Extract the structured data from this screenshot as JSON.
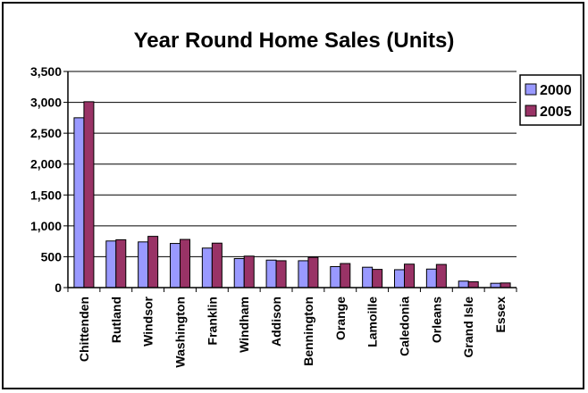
{
  "chart_data": {
    "type": "bar",
    "title": "Year Round Home Sales (Units)",
    "xlabel": "",
    "ylabel": "",
    "ylim": [
      0,
      3500
    ],
    "yticks": [
      0,
      500,
      1000,
      1500,
      2000,
      2500,
      3000,
      3500
    ],
    "ytick_labels": [
      "0",
      "500",
      "1,000",
      "1,500",
      "2,000",
      "2,500",
      "3,000",
      "3,500"
    ],
    "grid": true,
    "legend_position": "top-right",
    "categories": [
      "Chittenden",
      "Rutland",
      "Windsor",
      "Washington",
      "Franklin",
      "Windham",
      "Addison",
      "Bennington",
      "Orange",
      "Lamoille",
      "Caledonia",
      "Orleans",
      "Grand Isle",
      "Essex"
    ],
    "series": [
      {
        "name": "2000",
        "color": "#9999ff",
        "values": [
          2750,
          755,
          740,
          715,
          640,
          470,
          445,
          435,
          340,
          330,
          290,
          300,
          105,
          70
        ]
      },
      {
        "name": "2005",
        "color": "#993366",
        "values": [
          3010,
          775,
          830,
          780,
          720,
          510,
          435,
          490,
          390,
          295,
          380,
          375,
          95,
          75
        ]
      }
    ]
  }
}
